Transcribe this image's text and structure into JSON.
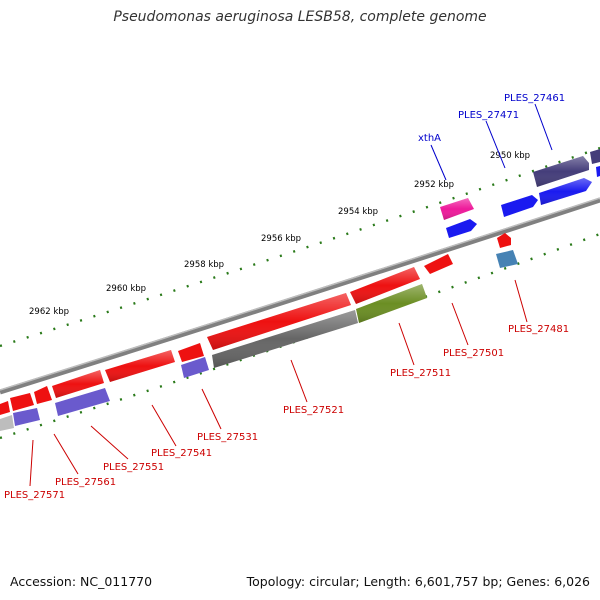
{
  "title": "Pseudomonas aeruginosa LESB58, complete genome",
  "footer": {
    "accession": "Accession: NC_011770",
    "topology": "Topology: circular; Length: 6,601,757 bp; Genes: 6,026"
  },
  "colors": {
    "background": "#ffffff",
    "backbone": "#8a8a8a",
    "ticks": "#2a7a1a",
    "scale_label": "#000000",
    "forward_gene_label": "#0000cc",
    "reverse_gene_label": "#cc0000",
    "gene_red": "#ee1111",
    "gene_blue": "#1a1af0",
    "gene_pink": "#ee1a9a",
    "gene_navy": "#443d7a",
    "gene_purple": "#6a5acd",
    "gene_grey": "#666666",
    "gene_olive": "#6b8e23",
    "gene_steel": "#4682b4",
    "gene_silver": "#bdbdbd"
  },
  "scale_labels": [
    "2950 kbp",
    "2952 kbp",
    "2954 kbp",
    "2956 kbp",
    "2958 kbp",
    "2960 kbp",
    "2962 kbp"
  ],
  "gene_labels": {
    "forward": [
      "PLES_27461",
      "PLES_27471",
      "xthA"
    ],
    "reverse": [
      "PLES_27481",
      "PLES_27501",
      "PLES_27511",
      "PLES_27521",
      "PLES_27531",
      "PLES_27541",
      "PLES_27551",
      "PLES_27561",
      "PLES_27571"
    ]
  }
}
